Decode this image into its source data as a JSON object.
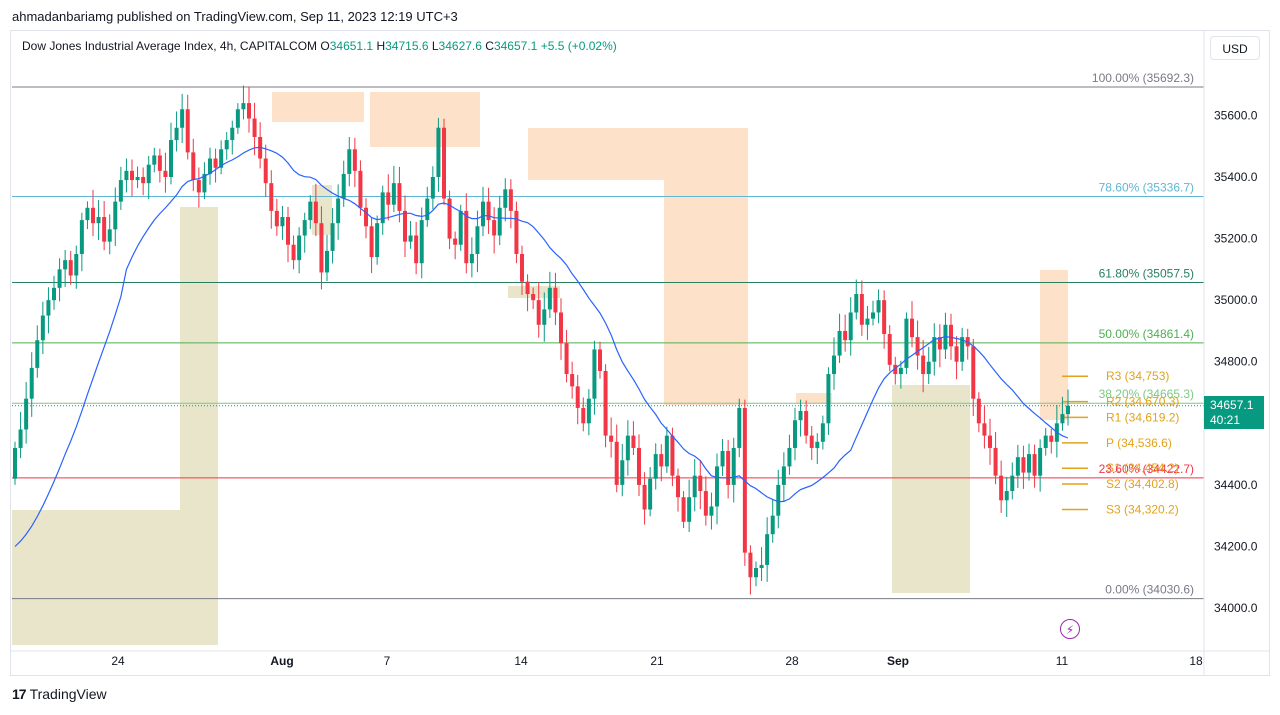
{
  "publish_line": "ahmadanbariamg published on TradingView.com, Sep 11, 2023 12:19 UTC+3",
  "legend": {
    "symbol": "Dow Jones Industrial Average Index, 4h, CAPITALCOM",
    "o_label": "O",
    "o": "34651.1",
    "h_label": "H",
    "h": "34715.6",
    "l_label": "L",
    "l": "34627.6",
    "c_label": "C",
    "c": "34657.1",
    "change": "+5.5 (+0.02%)"
  },
  "currency_button": "USD",
  "last_price": {
    "price": "34657.1",
    "countdown": "40:21"
  },
  "footer_logo": "TradingView",
  "logo_mark": "17",
  "bolt_icon": "⚡",
  "colors": {
    "up": "#089981",
    "down": "#f23645",
    "ma": "#2962ff",
    "pivot": "#e3a21a"
  },
  "chart_data": {
    "type": "candlestick",
    "y_axis": {
      "range": [
        33880,
        35780
      ],
      "ticks": [
        "35600.0",
        "35400.0",
        "35200.0",
        "35000.0",
        "34800.0",
        "34400.0",
        "34200.0",
        "34000.0"
      ]
    },
    "x_axis": {
      "ticks": [
        "24",
        "Aug",
        "7",
        "14",
        "21",
        "28",
        "Sep",
        "11",
        "18"
      ]
    },
    "fib_levels": [
      {
        "label": "100.00% (35692.3)",
        "value": 35692.3,
        "color": "#787b86"
      },
      {
        "label": "78.60% (35336.7)",
        "value": 35336.7,
        "color": "#5fb7d4"
      },
      {
        "label": "61.80% (35057.5)",
        "value": 35057.5,
        "color": "#26805f"
      },
      {
        "label": "50.00% (34861.4)",
        "value": 34861.4,
        "color": "#4caf50"
      },
      {
        "label": "38.20% (34665.3)",
        "value": 34665.3,
        "color": "#81c784"
      },
      {
        "label": "23.60% (34422.7)",
        "value": 34422.7,
        "color": "#f23645"
      },
      {
        "label": "0.00% (34030.6)",
        "value": 34030.6,
        "color": "#787b86"
      }
    ],
    "pivots": [
      {
        "label": "R3 (34,753)",
        "value": 34753
      },
      {
        "label": "R2 (34,670.3)",
        "value": 34670.3
      },
      {
        "label": "R1 (34,619.2)",
        "value": 34619.2
      },
      {
        "label": "P (34,536.6)",
        "value": 34536.6
      },
      {
        "label": "S1 (34,454.2)",
        "value": 34454.2
      },
      {
        "label": "S2 (34,402.8)",
        "value": 34402.8
      },
      {
        "label": "S3 (34,320.2)",
        "value": 34320.2
      }
    ],
    "candles_close": [
      34520,
      34580,
      34680,
      34780,
      34870,
      34950,
      35000,
      35040,
      35100,
      35130,
      35080,
      35150,
      35260,
      35300,
      35250,
      35270,
      35190,
      35230,
      35320,
      35390,
      35420,
      35390,
      35400,
      35380,
      35440,
      35470,
      35420,
      35400,
      35520,
      35560,
      35620,
      35480,
      35390,
      35350,
      35410,
      35460,
      35430,
      35490,
      35520,
      35560,
      35620,
      35640,
      35590,
      35530,
      35460,
      35380,
      35290,
      35240,
      35270,
      35180,
      35130,
      35210,
      35260,
      35320,
      35250,
      35090,
      35160,
      35250,
      35330,
      35410,
      35490,
      35420,
      35300,
      35240,
      35140,
      35250,
      35350,
      35310,
      35380,
      35290,
      35190,
      35210,
      35120,
      35260,
      35330,
      35400,
      35560,
      35330,
      35200,
      35180,
      35290,
      35120,
      35150,
      35240,
      35320,
      35260,
      35210,
      35300,
      35360,
      35290,
      35150,
      35060,
      35020,
      35000,
      34920,
      34970,
      35040,
      34960,
      34860,
      34760,
      34720,
      34650,
      34600,
      34680,
      34840,
      34770,
      34560,
      34540,
      34400,
      34480,
      34560,
      34520,
      34400,
      34320,
      34420,
      34500,
      34460,
      34560,
      34430,
      34360,
      34280,
      34360,
      34430,
      34380,
      34300,
      34330,
      34460,
      34510,
      34400,
      34520,
      34650,
      34180,
      34100,
      34130,
      34140,
      34240,
      34300,
      34400,
      34460,
      34520,
      34610,
      34640,
      34560,
      34520,
      34540,
      34600,
      34760,
      34820,
      34900,
      34870,
      34960,
      35020,
      34920,
      34940,
      34960,
      35000,
      34890,
      34790,
      34760,
      34780,
      34940,
      34880,
      34820,
      34760,
      34800,
      34880,
      34840,
      34920,
      34850,
      34800,
      34880,
      34850,
      34680,
      34600,
      34560,
      34520,
      34430,
      34350,
      34380,
      34430,
      34490,
      34440,
      34500,
      34430,
      34520,
      34560,
      34540,
      34600,
      34630,
      34657
    ]
  }
}
